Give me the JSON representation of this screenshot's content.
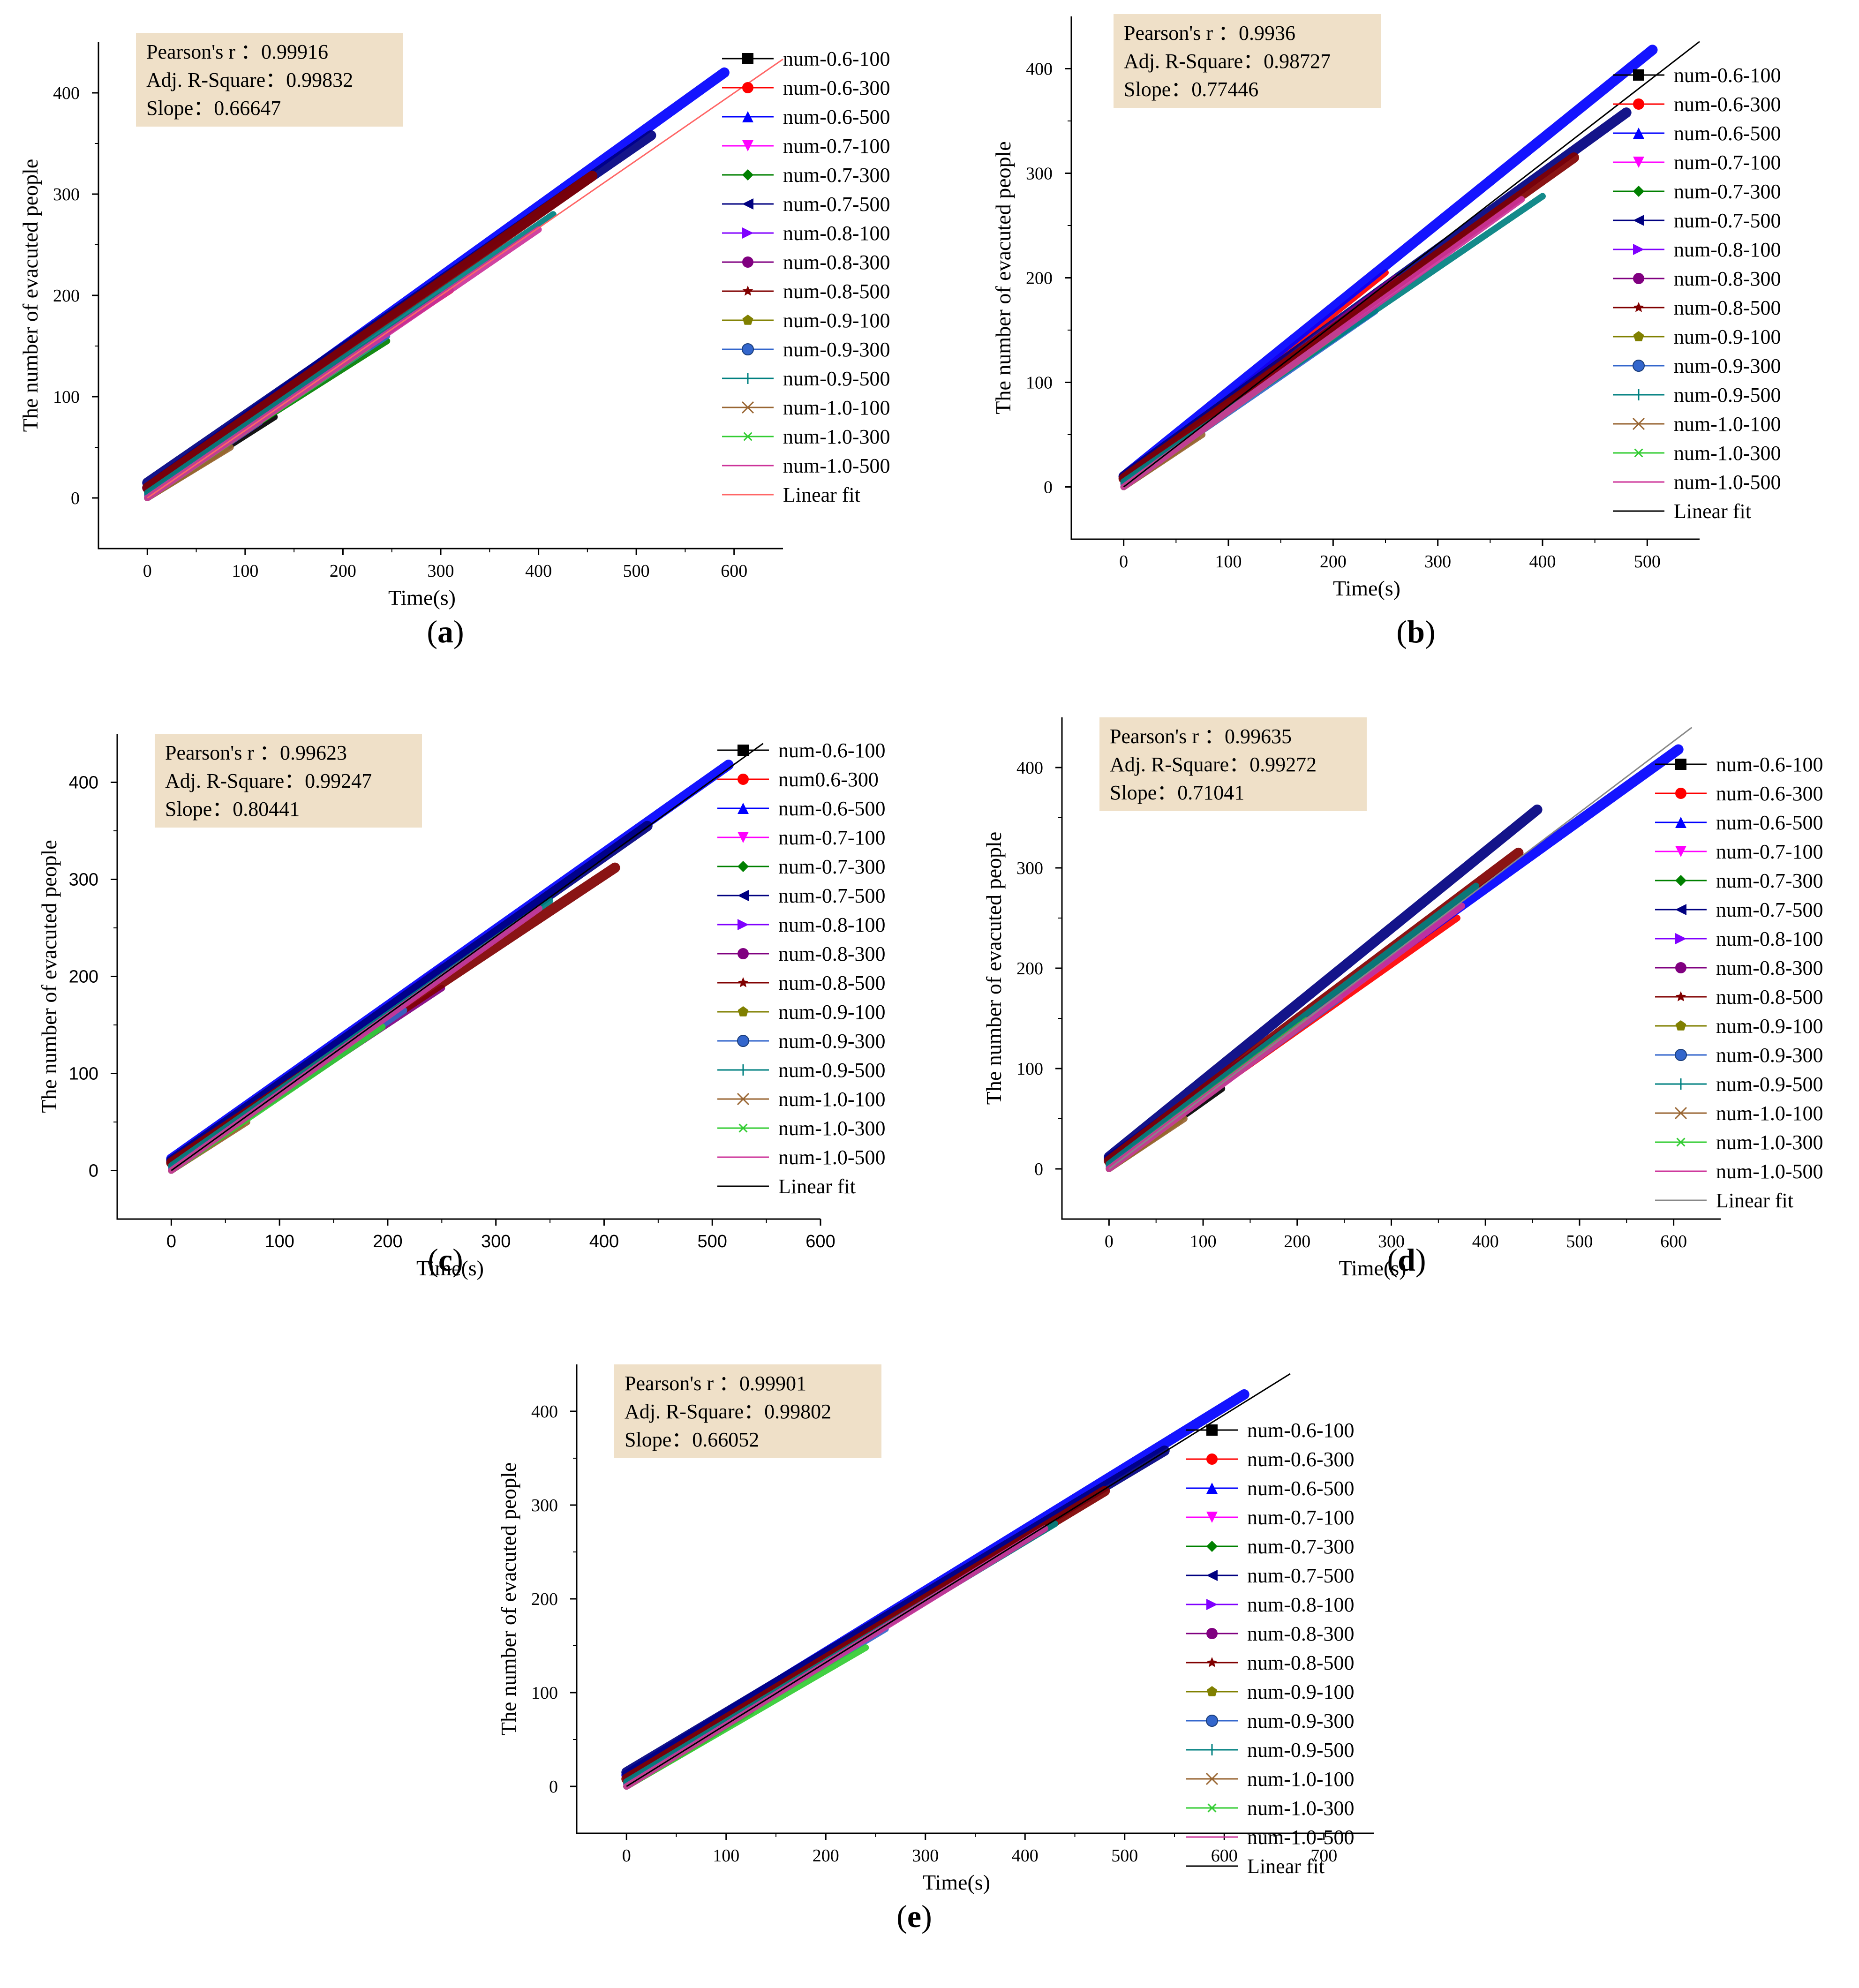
{
  "legend_labels": [
    "num-0.6-100",
    "num-0.6-300",
    "num-0.6-500",
    "num-0.7-100",
    "num-0.7-300",
    "num-0.7-500",
    "num-0.8-100",
    "num-0.8-300",
    "num-0.8-500",
    "num-0.9-100",
    "num-0.9-300",
    "num-0.9-500",
    "num-1.0-100",
    "num-1.0-300",
    "num-1.0-500"
  ],
  "series_colors": [
    "#000000",
    "#ff0000",
    "#0000ff",
    "#ff00ff",
    "#008000",
    "#000080",
    "#8000ff",
    "#800080",
    "#800000",
    "#808000",
    "#3366cc",
    "#008080",
    "#996633",
    "#33cc33",
    "#cc3399"
  ],
  "series_markers": [
    "square",
    "circle",
    "triangle-up",
    "triangle-down",
    "diamond",
    "triangle-left",
    "triangle-right",
    "circle",
    "star",
    "pentagon",
    "ball",
    "plus",
    "cross",
    "asterisk",
    "dash"
  ],
  "fit_label": "Linear fit",
  "stat_labels": {
    "r": "Pearson's r ：",
    "r2": "Adj. R-Square：",
    "slope": "Slope："
  },
  "axis_labels": {
    "x": "Time(s)",
    "y": "The number of evacuted people"
  },
  "chart_data": [
    {
      "panel": "a",
      "caption_letter": "a",
      "type": "line",
      "title": "",
      "xlabel": "Time(s)",
      "ylabel": "The number of evacuted people",
      "xlim": [
        -50,
        650
      ],
      "ylim": [
        -50,
        450
      ],
      "xticks": [
        0,
        100,
        200,
        300,
        400,
        500,
        600
      ],
      "yticks": [
        0,
        100,
        200,
        300,
        400
      ],
      "legend_position": "top-right",
      "stats": {
        "pearson_r": "0.99916",
        "adj_r_square": "0.99832",
        "slope": "0.66647"
      },
      "fit_line_color": "#ff6666",
      "series": [
        {
          "name": "num-0.6-100",
          "x": [
            0,
            130
          ],
          "y": [
            0,
            80
          ]
        },
        {
          "name": "num-0.6-300",
          "x": [
            0,
            310
          ],
          "y": [
            8,
            205
          ]
        },
        {
          "name": "num-0.6-500",
          "x": [
            0,
            590
          ],
          "y": [
            10,
            420
          ]
        },
        {
          "name": "num-0.7-100",
          "x": [
            0,
            105
          ],
          "y": [
            0,
            70
          ]
        },
        {
          "name": "num-0.7-300",
          "x": [
            0,
            245
          ],
          "y": [
            5,
            155
          ]
        },
        {
          "name": "num-0.7-500",
          "x": [
            0,
            515
          ],
          "y": [
            15,
            358
          ]
        },
        {
          "name": "num-0.8-100",
          "x": [
            0,
            115
          ],
          "y": [
            0,
            75
          ]
        },
        {
          "name": "num-0.8-300",
          "x": [
            0,
            300
          ],
          "y": [
            3,
            200
          ]
        },
        {
          "name": "num-0.8-500",
          "x": [
            0,
            455
          ],
          "y": [
            10,
            318
          ]
        },
        {
          "name": "num-0.9-100",
          "x": [
            0,
            80
          ],
          "y": [
            0,
            48
          ]
        },
        {
          "name": "num-0.9-300",
          "x": [
            0,
            245
          ],
          "y": [
            2,
            160
          ]
        },
        {
          "name": "num-0.9-500",
          "x": [
            0,
            415
          ],
          "y": [
            5,
            280
          ]
        },
        {
          "name": "num-1.0-100",
          "x": [
            0,
            85
          ],
          "y": [
            0,
            50
          ]
        },
        {
          "name": "num-1.0-300",
          "x": [
            0,
            225
          ],
          "y": [
            0,
            148
          ]
        },
        {
          "name": "num-1.0-500",
          "x": [
            0,
            400
          ],
          "y": [
            0,
            265
          ]
        }
      ]
    },
    {
      "panel": "b",
      "caption_letter": "b",
      "type": "line",
      "title": "",
      "xlabel": "Time(s)",
      "ylabel": "The number of evacuted people",
      "xlim": [
        -50,
        550
      ],
      "ylim": [
        -50,
        450
      ],
      "xticks": [
        0,
        100,
        200,
        300,
        400,
        500
      ],
      "yticks": [
        0,
        100,
        200,
        300,
        400
      ],
      "legend_position": "top-right",
      "stats": {
        "pearson_r": "0.9936",
        "adj_r_square": "0.98727",
        "slope": "0.77446"
      },
      "fit_line_color": "#000000",
      "series": [
        {
          "name": "num-0.6-100",
          "x": [
            0,
            110
          ],
          "y": [
            0,
            80
          ]
        },
        {
          "name": "num-0.6-300",
          "x": [
            0,
            250
          ],
          "y": [
            5,
            205
          ]
        },
        {
          "name": "num-0.6-500",
          "x": [
            0,
            505
          ],
          "y": [
            10,
            418
          ]
        },
        {
          "name": "num-0.7-100",
          "x": [
            0,
            90
          ],
          "y": [
            0,
            70
          ]
        },
        {
          "name": "num-0.7-300",
          "x": [
            0,
            200
          ],
          "y": [
            3,
            152
          ]
        },
        {
          "name": "num-0.7-500",
          "x": [
            0,
            480
          ],
          "y": [
            10,
            358
          ]
        },
        {
          "name": "num-0.8-100",
          "x": [
            0,
            95
          ],
          "y": [
            0,
            75
          ]
        },
        {
          "name": "num-0.8-300",
          "x": [
            0,
            260
          ],
          "y": [
            3,
            200
          ]
        },
        {
          "name": "num-0.8-500",
          "x": [
            0,
            430
          ],
          "y": [
            8,
            315
          ]
        },
        {
          "name": "num-0.9-100",
          "x": [
            0,
            70
          ],
          "y": [
            0,
            48
          ]
        },
        {
          "name": "num-0.9-300",
          "x": [
            0,
            240
          ],
          "y": [
            2,
            168
          ]
        },
        {
          "name": "num-0.9-500",
          "x": [
            0,
            400
          ],
          "y": [
            5,
            278
          ]
        },
        {
          "name": "num-1.0-100",
          "x": [
            0,
            75
          ],
          "y": [
            0,
            50
          ]
        },
        {
          "name": "num-1.0-300",
          "x": [
            0,
            205
          ],
          "y": [
            0,
            148
          ]
        },
        {
          "name": "num-1.0-500",
          "x": [
            0,
            380
          ],
          "y": [
            0,
            275
          ]
        }
      ]
    },
    {
      "panel": "c",
      "caption_letter": "c",
      "type": "line",
      "title": "",
      "xlabel": "Time(s)",
      "ylabel": "The number of evacuted people",
      "xlim": [
        -50,
        600
      ],
      "ylim": [
        -50,
        450
      ],
      "xticks": [
        0,
        100,
        200,
        300,
        400,
        500,
        600
      ],
      "yticks": [
        0,
        100,
        200,
        300,
        400
      ],
      "legend_position": "top-right",
      "legend_override": {
        "1": "num0.6-300"
      },
      "stats": {
        "pearson_r": "0.99623",
        "adj_r_square": "0.99247",
        "slope": "0.80441"
      },
      "fit_line_color": "#000000",
      "series": [
        {
          "name": "num-0.6-100",
          "x": [
            0,
            100
          ],
          "y": [
            0,
            80
          ]
        },
        {
          "name": "num-0.6-300",
          "x": [
            0,
            250
          ],
          "y": [
            5,
            210
          ]
        },
        {
          "name": "num-0.6-500",
          "x": [
            0,
            515
          ],
          "y": [
            12,
            418
          ]
        },
        {
          "name": "num-0.7-100",
          "x": [
            0,
            85
          ],
          "y": [
            0,
            70
          ]
        },
        {
          "name": "num-0.7-300",
          "x": [
            0,
            190
          ],
          "y": [
            3,
            150
          ]
        },
        {
          "name": "num-0.7-500",
          "x": [
            0,
            440
          ],
          "y": [
            10,
            355
          ]
        },
        {
          "name": "num-0.8-100",
          "x": [
            0,
            90
          ],
          "y": [
            0,
            75
          ]
        },
        {
          "name": "num-0.8-300",
          "x": [
            0,
            250
          ],
          "y": [
            3,
            188
          ]
        },
        {
          "name": "num-0.8-500",
          "x": [
            0,
            410
          ],
          "y": [
            8,
            312
          ]
        },
        {
          "name": "num-0.9-100",
          "x": [
            0,
            65
          ],
          "y": [
            0,
            48
          ]
        },
        {
          "name": "num-0.9-300",
          "x": [
            0,
            215
          ],
          "y": [
            2,
            165
          ]
        },
        {
          "name": "num-0.9-500",
          "x": [
            0,
            350
          ],
          "y": [
            5,
            278
          ]
        },
        {
          "name": "num-1.0-100",
          "x": [
            0,
            70
          ],
          "y": [
            0,
            50
          ]
        },
        {
          "name": "num-1.0-300",
          "x": [
            0,
            195
          ],
          "y": [
            0,
            148
          ]
        },
        {
          "name": "num-1.0-500",
          "x": [
            0,
            340
          ],
          "y": [
            0,
            270
          ]
        }
      ]
    },
    {
      "panel": "d",
      "caption_letter": "d",
      "type": "line",
      "title": "",
      "xlabel": "Time(s)",
      "ylabel": "The number of evacuted people",
      "xlim": [
        -50,
        650
      ],
      "ylim": [
        -50,
        450
      ],
      "xticks": [
        0,
        100,
        200,
        300,
        400,
        500,
        600
      ],
      "yticks": [
        0,
        100,
        200,
        300,
        400
      ],
      "legend_position": "top-right",
      "stats": {
        "pearson_r": "0.99635",
        "adj_r_square": "0.99272",
        "slope": "0.71041"
      },
      "fit_line_color": "#888888",
      "series": [
        {
          "name": "num-0.6-100",
          "x": [
            0,
            120
          ],
          "y": [
            0,
            80
          ]
        },
        {
          "name": "num-0.6-300",
          "x": [
            0,
            370
          ],
          "y": [
            5,
            250
          ]
        },
        {
          "name": "num-0.6-500",
          "x": [
            0,
            605
          ],
          "y": [
            10,
            418
          ]
        },
        {
          "name": "num-0.7-100",
          "x": [
            0,
            100
          ],
          "y": [
            0,
            70
          ]
        },
        {
          "name": "num-0.7-300",
          "x": [
            0,
            215
          ],
          "y": [
            3,
            152
          ]
        },
        {
          "name": "num-0.7-500",
          "x": [
            0,
            455
          ],
          "y": [
            12,
            358
          ]
        },
        {
          "name": "num-0.8-100",
          "x": [
            0,
            105
          ],
          "y": [
            0,
            75
          ]
        },
        {
          "name": "num-0.8-300",
          "x": [
            0,
            290
          ],
          "y": [
            3,
            205
          ]
        },
        {
          "name": "num-0.8-500",
          "x": [
            0,
            435
          ],
          "y": [
            8,
            315
          ]
        },
        {
          "name": "num-0.9-100",
          "x": [
            0,
            75
          ],
          "y": [
            0,
            48
          ]
        },
        {
          "name": "num-0.9-300",
          "x": [
            0,
            245
          ],
          "y": [
            2,
            170
          ]
        },
        {
          "name": "num-0.9-500",
          "x": [
            0,
            390
          ],
          "y": [
            5,
            282
          ]
        },
        {
          "name": "num-1.0-100",
          "x": [
            0,
            80
          ],
          "y": [
            0,
            50
          ]
        },
        {
          "name": "num-1.0-300",
          "x": [
            0,
            210
          ],
          "y": [
            0,
            148
          ]
        },
        {
          "name": "num-1.0-500",
          "x": [
            0,
            375
          ],
          "y": [
            0,
            262
          ]
        }
      ]
    },
    {
      "panel": "e",
      "caption_letter": "e",
      "type": "line",
      "title": "",
      "xlabel": "Time(s)",
      "ylabel": "The number of evacuted people",
      "xlim": [
        -50,
        750
      ],
      "ylim": [
        -50,
        450
      ],
      "xticks": [
        0,
        100,
        200,
        300,
        400,
        500,
        600,
        700
      ],
      "yticks": [
        0,
        100,
        200,
        300,
        400
      ],
      "legend_position": "top-right",
      "stats": {
        "pearson_r": "0.99901",
        "adj_r_square": "0.99802",
        "slope": "0.66052"
      },
      "fit_line_color": "#000000",
      "series": [
        {
          "name": "num-0.6-100",
          "x": [
            0,
            125
          ],
          "y": [
            0,
            80
          ]
        },
        {
          "name": "num-0.6-300",
          "x": [
            0,
            320
          ],
          "y": [
            8,
            210
          ]
        },
        {
          "name": "num-0.6-500",
          "x": [
            0,
            620
          ],
          "y": [
            12,
            418
          ]
        },
        {
          "name": "num-0.7-100",
          "x": [
            0,
            105
          ],
          "y": [
            0,
            70
          ]
        },
        {
          "name": "num-0.7-300",
          "x": [
            0,
            230
          ],
          "y": [
            3,
            152
          ]
        },
        {
          "name": "num-0.7-500",
          "x": [
            0,
            540
          ],
          "y": [
            15,
            358
          ]
        },
        {
          "name": "num-0.8-100",
          "x": [
            0,
            115
          ],
          "y": [
            0,
            75
          ]
        },
        {
          "name": "num-0.8-300",
          "x": [
            0,
            300
          ],
          "y": [
            3,
            200
          ]
        },
        {
          "name": "num-0.8-500",
          "x": [
            0,
            480
          ],
          "y": [
            8,
            315
          ]
        },
        {
          "name": "num-0.9-100",
          "x": [
            0,
            75
          ],
          "y": [
            0,
            48
          ]
        },
        {
          "name": "num-0.9-300",
          "x": [
            0,
            260
          ],
          "y": [
            2,
            168
          ]
        },
        {
          "name": "num-0.9-500",
          "x": [
            0,
            430
          ],
          "y": [
            5,
            280
          ]
        },
        {
          "name": "num-1.0-100",
          "x": [
            0,
            80
          ],
          "y": [
            0,
            50
          ]
        },
        {
          "name": "num-1.0-300",
          "x": [
            0,
            240
          ],
          "y": [
            0,
            148
          ]
        },
        {
          "name": "num-1.0-500",
          "x": [
            0,
            420
          ],
          "y": [
            0,
            275
          ]
        }
      ]
    }
  ]
}
